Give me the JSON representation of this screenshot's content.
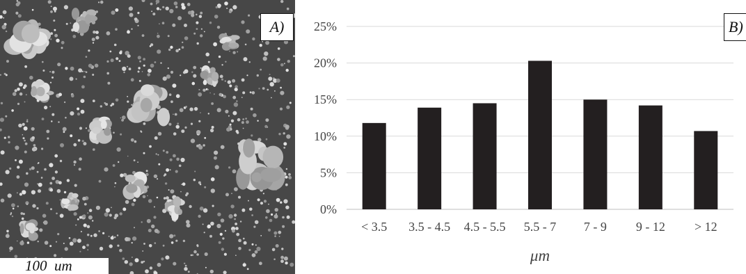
{
  "panel_a": {
    "tag": "A)",
    "scale_label": "100  um"
  },
  "panel_b": {
    "tag": "B)"
  },
  "chart_data": {
    "type": "bar",
    "categories": [
      "< 3.5",
      "3.5 - 4.5",
      "4.5 - 5.5",
      "5.5 - 7",
      "7 - 9",
      "9 - 12",
      "> 12"
    ],
    "values": [
      11.8,
      13.9,
      14.5,
      20.3,
      15.0,
      14.2,
      10.7
    ],
    "xlabel": "μm",
    "ylabel": "",
    "ylim": [
      0,
      25
    ],
    "yticks": [
      "0%",
      "5%",
      "10%",
      "15%",
      "20%",
      "25%"
    ],
    "grid": true,
    "legend": "none",
    "colors": {
      "bar": "#231f20",
      "grid": "#d9d9d9",
      "axis": "#bfbfbf"
    }
  }
}
